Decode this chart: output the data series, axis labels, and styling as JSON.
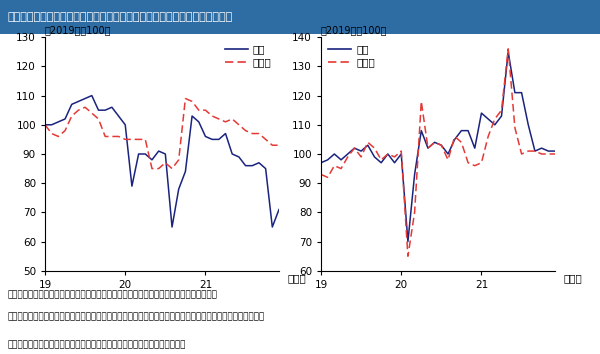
{
  "title": "日本の自動車販売台数（左）と米国の自動車ディーラーの実質売上高（右）",
  "title_bg_color": "#2e6da4",
  "title_text_color": "#ffffff",
  "ylabel_left": "（2019年＝100）",
  "ylabel_right": "（2019年＝100）",
  "legend_new": "新車",
  "legend_used": "中古車",
  "note1": "（注）大和総研による季節調整値。日本の中古車販売台数は、新規・移転・変更の合計。",
  "note2": "　　　米国のデータに関しては、新車・中古車の自動車ディーラーの売上高をそれぞれの価格で実質化した。",
  "source": "（出所）日本自動車販売協会連合会、米商務省、米労働省より大和総研作成",
  "new_car_color": "#1a237e",
  "used_car_color": "#e53935",
  "left_ylim": [
    50,
    130
  ],
  "left_yticks": [
    50,
    60,
    70,
    80,
    90,
    100,
    110,
    120,
    130
  ],
  "right_ylim": [
    60,
    140
  ],
  "right_yticks": [
    60,
    70,
    80,
    90,
    100,
    110,
    120,
    130,
    140
  ],
  "left_new": [
    100,
    100,
    101,
    102,
    107,
    108,
    109,
    110,
    105,
    105,
    106,
    103,
    100,
    79,
    90,
    90,
    88,
    91,
    90,
    65,
    78,
    84,
    103,
    101,
    96,
    95,
    95,
    97,
    90,
    89,
    86,
    86,
    87,
    85,
    65,
    71
  ],
  "left_used": [
    100,
    97,
    96,
    98,
    103,
    105,
    106,
    104,
    102,
    96,
    96,
    96,
    95,
    95,
    95,
    95,
    85,
    85,
    87,
    85,
    88,
    109,
    108,
    105,
    105,
    103,
    102,
    101,
    102,
    100,
    98,
    97,
    97,
    95,
    93,
    93
  ],
  "right_new": [
    97,
    98,
    100,
    98,
    100,
    102,
    101,
    103,
    99,
    97,
    100,
    97,
    100,
    70,
    93,
    108,
    102,
    104,
    103,
    100,
    105,
    108,
    108,
    102,
    114,
    112,
    110,
    113,
    135,
    121,
    121,
    110,
    101,
    102,
    101,
    101
  ],
  "right_used": [
    93,
    92,
    96,
    95,
    99,
    102,
    99,
    104,
    102,
    98,
    100,
    99,
    101,
    65,
    80,
    118,
    102,
    104,
    103,
    98,
    106,
    104,
    97,
    96,
    97,
    106,
    112,
    115,
    136,
    109,
    100,
    101,
    101,
    100,
    100,
    100
  ]
}
